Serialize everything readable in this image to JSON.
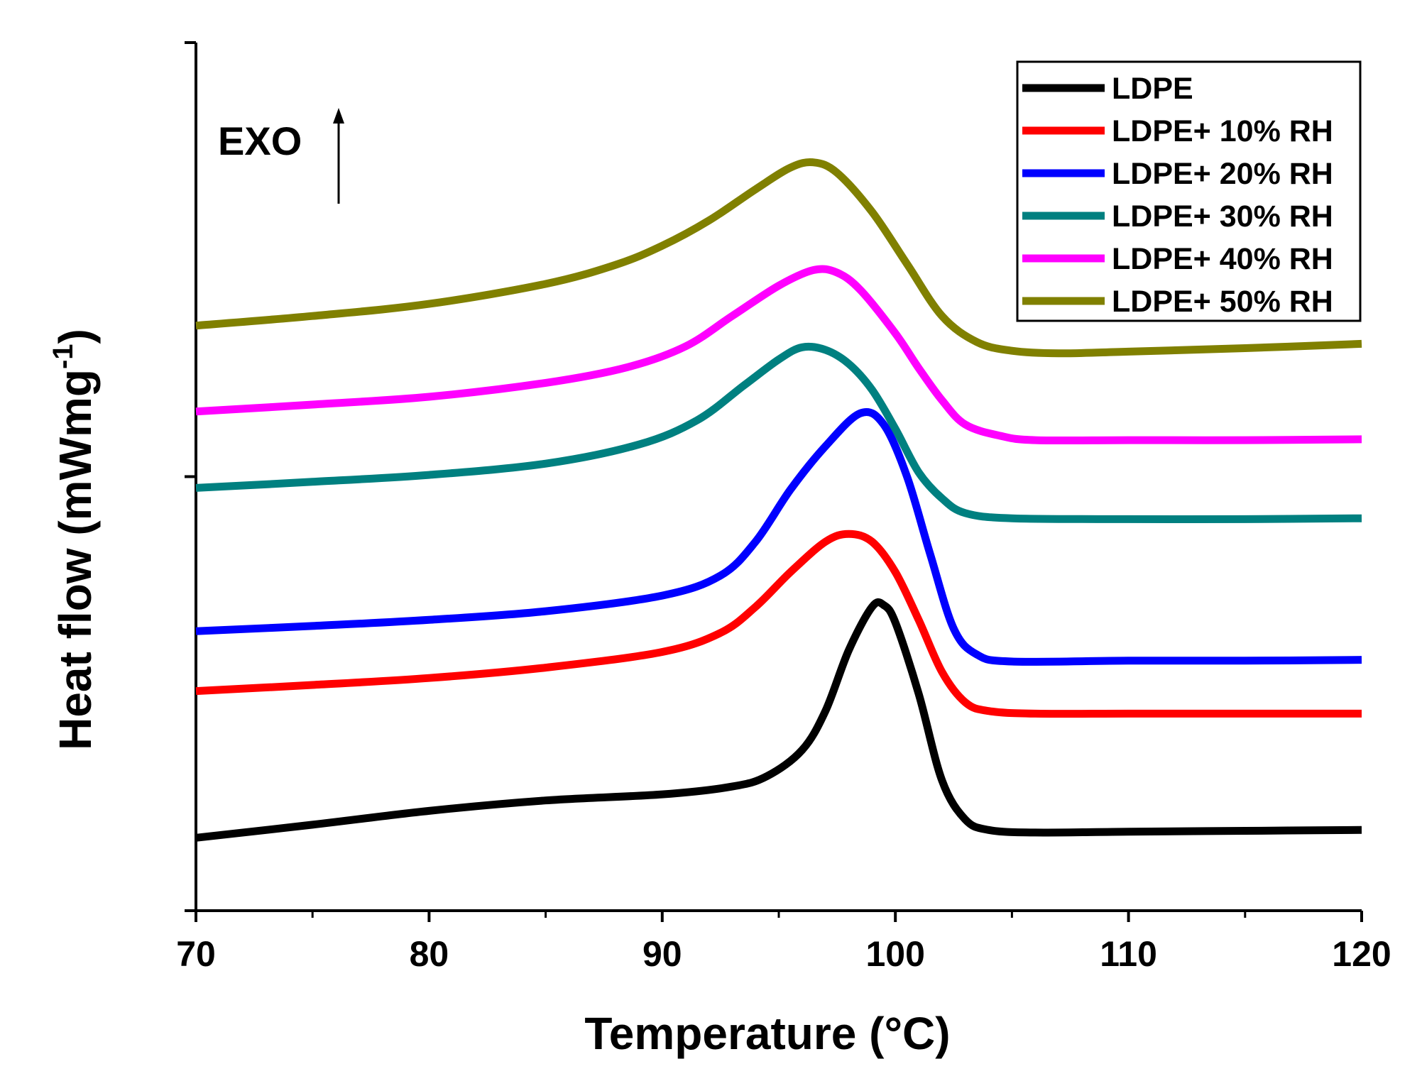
{
  "chart_data": {
    "type": "line",
    "xlabel": "Temperature (°C)",
    "ylabel": "Heat flow (mWmg",
    "ylabel_superscript": "-1",
    "ylabel_suffix": ")",
    "xlim": [
      70,
      120
    ],
    "ylim": [
      0,
      100
    ],
    "x_ticks": [
      70,
      80,
      90,
      100,
      110,
      120
    ],
    "x_tick_labels": [
      "70",
      "80",
      "90",
      "100",
      "110",
      "120"
    ],
    "y_tick_labels_shown": false,
    "grid": false,
    "legend_position": "top-right",
    "annotation": {
      "text": "EXO",
      "arrow": "up"
    },
    "series": [
      {
        "name": "LDPE",
        "color": "#000000",
        "points": [
          [
            70,
            8.4
          ],
          [
            75,
            9.9
          ],
          [
            80,
            11.5
          ],
          [
            85,
            12.7
          ],
          [
            90,
            13.4
          ],
          [
            93,
            14.3
          ],
          [
            94.5,
            15.5
          ],
          [
            96,
            18.5
          ],
          [
            97,
            23
          ],
          [
            98,
            30
          ],
          [
            99,
            35
          ],
          [
            99.5,
            35.2
          ],
          [
            100,
            33.2
          ],
          [
            101,
            25
          ],
          [
            102,
            15
          ],
          [
            103,
            10.5
          ],
          [
            104,
            9.3
          ],
          [
            106,
            9.0
          ],
          [
            110,
            9.1
          ],
          [
            115,
            9.2
          ],
          [
            120,
            9.3
          ]
        ]
      },
      {
        "name": "LDPE+ 10% RH",
        "color": "#ff0000",
        "points": [
          [
            70,
            25.3
          ],
          [
            75,
            26.0
          ],
          [
            80,
            26.8
          ],
          [
            85,
            28.0
          ],
          [
            90,
            29.8
          ],
          [
            92.5,
            32.0
          ],
          [
            94,
            35.0
          ],
          [
            95.5,
            39.0
          ],
          [
            97,
            42.5
          ],
          [
            98,
            43.4
          ],
          [
            99,
            42.5
          ],
          [
            100,
            39
          ],
          [
            101,
            33.5
          ],
          [
            102,
            27.5
          ],
          [
            103,
            24.0
          ],
          [
            104,
            23
          ],
          [
            106,
            22.7
          ],
          [
            110,
            22.7
          ],
          [
            115,
            22.7
          ],
          [
            120,
            22.7
          ]
        ]
      },
      {
        "name": "LDPE+ 20% RH",
        "color": "#0000ff",
        "points": [
          [
            70,
            32.2
          ],
          [
            75,
            32.8
          ],
          [
            80,
            33.5
          ],
          [
            85,
            34.5
          ],
          [
            90,
            36.3
          ],
          [
            92.5,
            38.6
          ],
          [
            94,
            42.5
          ],
          [
            95.5,
            48.5
          ],
          [
            97,
            53.5
          ],
          [
            98.5,
            57.3
          ],
          [
            99.5,
            56
          ],
          [
            100.5,
            50
          ],
          [
            101.5,
            41
          ],
          [
            102.5,
            32.5
          ],
          [
            103.5,
            29.5
          ],
          [
            105,
            28.7
          ],
          [
            110,
            28.8
          ],
          [
            115,
            28.8
          ],
          [
            120,
            28.9
          ]
        ]
      },
      {
        "name": "LDPE+ 30% RH",
        "color": "#008080",
        "points": [
          [
            70,
            48.7
          ],
          [
            75,
            49.4
          ],
          [
            80,
            50.2
          ],
          [
            85,
            51.5
          ],
          [
            89,
            53.7
          ],
          [
            91.5,
            56.5
          ],
          [
            93.5,
            60.5
          ],
          [
            95,
            63.5
          ],
          [
            96,
            64.9
          ],
          [
            97,
            64.6
          ],
          [
            98,
            63
          ],
          [
            99,
            60
          ],
          [
            100,
            55.5
          ],
          [
            101,
            50.5
          ],
          [
            102,
            47.5
          ],
          [
            103,
            45.8
          ],
          [
            105,
            45.2
          ],
          [
            110,
            45.1
          ],
          [
            115,
            45.1
          ],
          [
            120,
            45.2
          ]
        ]
      },
      {
        "name": "LDPE+ 40% RH",
        "color": "#ff00ff",
        "points": [
          [
            70,
            57.5
          ],
          [
            75,
            58.3
          ],
          [
            80,
            59.2
          ],
          [
            85,
            60.8
          ],
          [
            88.5,
            62.6
          ],
          [
            91,
            65.0
          ],
          [
            93,
            68.5
          ],
          [
            95,
            72.0
          ],
          [
            96.5,
            73.8
          ],
          [
            97.5,
            73.5
          ],
          [
            98.5,
            71.5
          ],
          [
            100,
            66.5
          ],
          [
            101,
            62.5
          ],
          [
            102,
            58.8
          ],
          [
            103,
            56
          ],
          [
            104.5,
            54.7
          ],
          [
            106,
            54.2
          ],
          [
            110,
            54.2
          ],
          [
            115,
            54.2
          ],
          [
            120,
            54.3
          ]
        ]
      },
      {
        "name": "LDPE+ 50% RH",
        "color": "#808000",
        "points": [
          [
            70,
            67.4
          ],
          [
            75,
            68.5
          ],
          [
            80,
            69.9
          ],
          [
            85,
            72.2
          ],
          [
            88,
            74.4
          ],
          [
            90,
            76.6
          ],
          [
            92,
            79.5
          ],
          [
            94,
            83.1
          ],
          [
            95.5,
            85.6
          ],
          [
            96.5,
            86.2
          ],
          [
            97.5,
            85.0
          ],
          [
            99,
            80.5
          ],
          [
            100.5,
            74.5
          ],
          [
            102,
            68.5
          ],
          [
            103.5,
            65.5
          ],
          [
            105,
            64.5
          ],
          [
            107,
            64.2
          ],
          [
            110,
            64.4
          ],
          [
            115,
            64.8
          ],
          [
            120,
            65.3
          ]
        ]
      }
    ]
  }
}
